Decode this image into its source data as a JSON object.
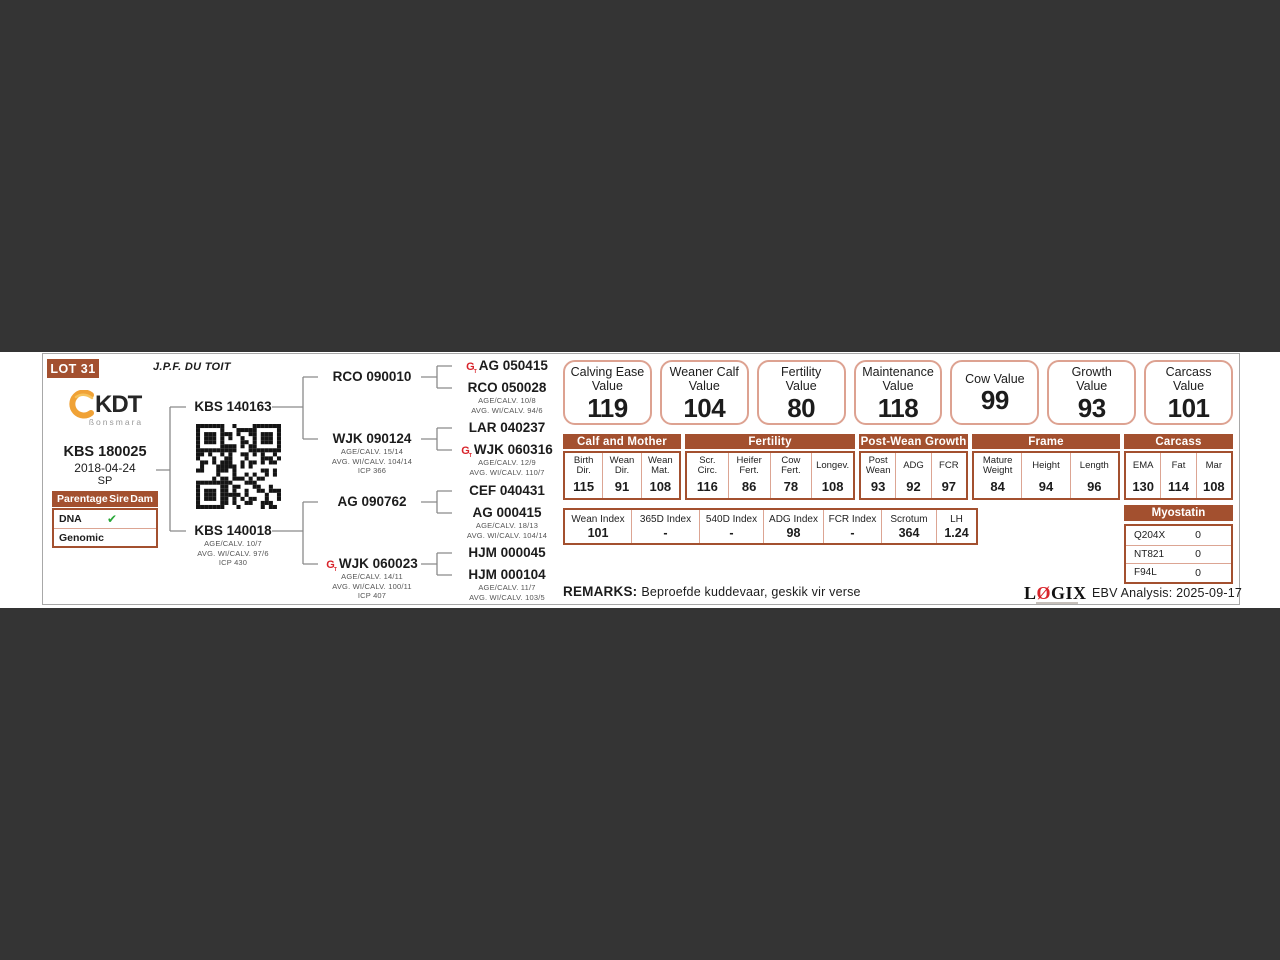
{
  "colors": {
    "brown": "#A3502F",
    "salmon": "#DCA593",
    "red": "#D8232A",
    "green": "#27A737",
    "orange": "#F0A236",
    "background": "#343434"
  },
  "lot": {
    "badge": "LOT 31",
    "owner": "J.P.F. DU TOIT"
  },
  "logo": {
    "brand": "KDT",
    "sub": "ßonsmara"
  },
  "animal": {
    "id": "KBS 180025",
    "dob": "2018-04-24",
    "status": "SP"
  },
  "parentage": {
    "header": {
      "title": "Parentage",
      "sire": "Sire",
      "dam": "Dam"
    },
    "rows": [
      {
        "label": "DNA",
        "sire": "✔",
        "dam": ""
      },
      {
        "label": "Genomic",
        "sire": "",
        "dam": ""
      }
    ]
  },
  "pedigree": {
    "sire": {
      "id": "KBS 140163"
    },
    "dam": {
      "id": "KBS 140018",
      "stats": "AGE/CALV. 10/7\nAVG. WI/CALV. 97/6\nICP 430"
    },
    "gen2": [
      {
        "id": "RCO 090010"
      },
      {
        "id": "WJK 090124",
        "stats": "AGE/CALV. 15/14\nAVG. WI/CALV. 104/14\nICP 366"
      },
      {
        "id": "AG 090762"
      },
      {
        "id": "WJK 060023",
        "gt": true,
        "stats": "AGE/CALV. 14/11\nAVG. WI/CALV. 100/11\nICP 407"
      }
    ],
    "gen3": [
      {
        "id": "AG 050415",
        "gt": true
      },
      {
        "id": "RCO 050028",
        "stats": "AGE/CALV. 10/8\nAVG. WI/CALV. 94/6"
      },
      {
        "id": "LAR 040237"
      },
      {
        "id": "WJK 060316",
        "gt": true,
        "stats": "AGE/CALV. 12/9\nAVG. WI/CALV. 110/7"
      },
      {
        "id": "CEF 040431"
      },
      {
        "id": "AG 000415",
        "stats": "AGE/CALV. 18/13\nAVG. WI/CALV. 104/14"
      },
      {
        "id": "HJM 000045"
      },
      {
        "id": "HJM 000104",
        "stats": "AGE/CALV. 11/7\nAVG. WI/CALV. 103/5"
      }
    ]
  },
  "values": [
    {
      "label": "Calving Ease\nValue",
      "value": "119"
    },
    {
      "label": "Weaner Calf\nValue",
      "value": "104"
    },
    {
      "label": "Fertility\nValue",
      "value": "80"
    },
    {
      "label": "Maintenance\nValue",
      "value": "118"
    },
    {
      "label": "Cow Value",
      "value": "99"
    },
    {
      "label": "Growth\nValue",
      "value": "93"
    },
    {
      "label": "Carcass\nValue",
      "value": "101"
    }
  ],
  "ebv": {
    "groups": [
      {
        "title": "Calf and Mother",
        "cols": [
          {
            "label": "Birth\nDir.",
            "value": "115"
          },
          {
            "label": "Wean\nDir.",
            "value": "91"
          },
          {
            "label": "Wean\nMat.",
            "value": "108"
          }
        ]
      },
      {
        "title": "Fertility",
        "cols": [
          {
            "label": "Scr.\nCirc.",
            "value": "116"
          },
          {
            "label": "Heifer\nFert.",
            "value": "86"
          },
          {
            "label": "Cow\nFert.",
            "value": "78"
          },
          {
            "label": "Longev.",
            "value": "108"
          }
        ]
      },
      {
        "title": "Post-Wean Growth",
        "cols": [
          {
            "label": "Post\nWean",
            "value": "93"
          },
          {
            "label": "ADG",
            "value": "92"
          },
          {
            "label": "FCR",
            "value": "97"
          }
        ]
      },
      {
        "title": "Frame",
        "cols": [
          {
            "label": "Mature\nWeight",
            "value": "84"
          },
          {
            "label": "Height",
            "value": "94"
          },
          {
            "label": "Length",
            "value": "96"
          }
        ]
      },
      {
        "title": "Carcass",
        "cols": [
          {
            "label": "EMA",
            "value": "130"
          },
          {
            "label": "Fat",
            "value": "114"
          },
          {
            "label": "Mar",
            "value": "108"
          }
        ]
      }
    ],
    "indices": [
      {
        "label": "Wean Index",
        "value": "101"
      },
      {
        "label": "365D Index",
        "value": "-"
      },
      {
        "label": "540D Index",
        "value": "-"
      },
      {
        "label": "ADG Index",
        "value": "98"
      },
      {
        "label": "FCR Index",
        "value": "-"
      },
      {
        "label": "Scrotum",
        "value": "364"
      },
      {
        "label": "LH",
        "value": "1.24"
      }
    ]
  },
  "myostatin": {
    "title": "Myostatin",
    "rows": [
      {
        "label": "Q204X",
        "value": "0"
      },
      {
        "label": "NT821",
        "value": "0"
      },
      {
        "label": "F94L",
        "value": "0"
      }
    ]
  },
  "remarks": {
    "label": "REMARKS:",
    "text": "Beproefde kuddevaar, geskik vir verse"
  },
  "footer": {
    "logix_pre": "L",
    "logix_o": "Ø",
    "logix_post": "GIX",
    "ebv_analysis": "EBV Analysis: 2025-09-17"
  }
}
